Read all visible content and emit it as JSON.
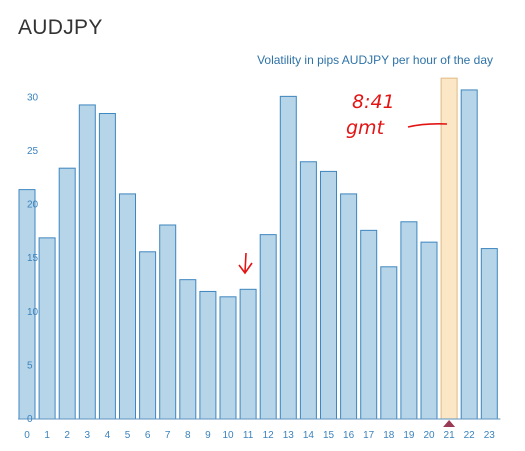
{
  "page": {
    "title": "AUDJPY"
  },
  "chart_data": {
    "type": "bar",
    "title": "Volatility in pips AUDJPY per hour of the day",
    "xlabel": "",
    "ylabel": "",
    "categories": [
      "0",
      "1",
      "2",
      "3",
      "4",
      "5",
      "6",
      "7",
      "8",
      "9",
      "10",
      "11",
      "12",
      "13",
      "14",
      "15",
      "16",
      "17",
      "18",
      "19",
      "20",
      "21",
      "22",
      "23"
    ],
    "values": [
      21.4,
      16.9,
      23.4,
      29.3,
      28.5,
      21.0,
      15.6,
      18.1,
      13.0,
      11.9,
      11.4,
      12.1,
      17.2,
      30.1,
      24.0,
      23.1,
      21.0,
      17.6,
      14.2,
      18.4,
      16.5,
      31.8,
      30.7,
      15.9
    ],
    "ylim": [
      0,
      32
    ],
    "yticks": [
      "0",
      "5",
      "10",
      "15",
      "20",
      "25",
      "30"
    ],
    "highlighted_category": "21",
    "grid": false,
    "colors": {
      "bar_fill": "#b7d5e8",
      "bar_stroke": "#3e86bf",
      "highlight_fill": "#fbe6c5",
      "highlight_stroke": "#e0b985",
      "marker": "#9b3a55",
      "axis": "#5f94c2"
    }
  },
  "annotations": {
    "handwritten_line1": "8:41",
    "handwritten_line2": "gmt",
    "color": "#e31414"
  }
}
